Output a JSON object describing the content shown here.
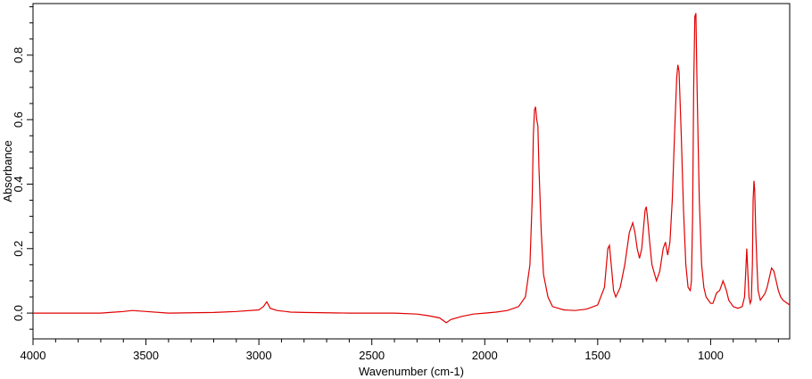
{
  "chart_data": {
    "type": "line",
    "title": "",
    "xlabel": "Wavenumber (cm-1)",
    "ylabel": "Absorbance",
    "xlim": [
      4000,
      650
    ],
    "ylim": [
      -0.08,
      0.96
    ],
    "x_ticks": [
      "4000",
      "3500",
      "3000",
      "2500",
      "2000",
      "1500",
      "1000"
    ],
    "y_ticks": [
      "0.0",
      "0.2",
      "0.4",
      "0.6",
      "0.8"
    ],
    "grid": false,
    "legend": "none",
    "series": [
      {
        "color": "#e00000",
        "x": [
          4000,
          3700,
          3600,
          3560,
          3500,
          3400,
          3200,
          3100,
          3000,
          2980,
          2965,
          2950,
          2920,
          2880,
          2860,
          2800,
          2600,
          2400,
          2300,
          2250,
          2200,
          2170,
          2150,
          2100,
          2050,
          2000,
          1950,
          1900,
          1850,
          1820,
          1800,
          1790,
          1785,
          1780,
          1775,
          1770,
          1765,
          1760,
          1750,
          1740,
          1720,
          1700,
          1650,
          1600,
          1550,
          1500,
          1470,
          1455,
          1448,
          1440,
          1430,
          1420,
          1400,
          1380,
          1360,
          1345,
          1335,
          1325,
          1315,
          1305,
          1295,
          1290,
          1285,
          1280,
          1270,
          1260,
          1240,
          1225,
          1210,
          1200,
          1195,
          1190,
          1180,
          1170,
          1160,
          1150,
          1145,
          1140,
          1130,
          1120,
          1110,
          1100,
          1090,
          1085,
          1080,
          1075,
          1070,
          1065,
          1060,
          1050,
          1040,
          1030,
          1020,
          1000,
          990,
          980,
          975,
          970,
          960,
          950,
          945,
          940,
          930,
          920,
          910,
          900,
          880,
          860,
          850,
          845,
          840,
          835,
          830,
          825,
          820,
          815,
          812,
          808,
          805,
          800,
          795,
          790,
          780,
          770,
          760,
          750,
          740,
          730,
          720,
          710,
          700,
          690,
          680,
          670,
          660,
          650
        ],
        "values": [
          0.0,
          0.0,
          0.005,
          0.008,
          0.005,
          0.0,
          0.002,
          0.005,
          0.01,
          0.02,
          0.035,
          0.015,
          0.008,
          0.005,
          0.003,
          0.002,
          0.0,
          0.0,
          -0.003,
          -0.008,
          -0.015,
          -0.03,
          -0.02,
          -0.01,
          -0.003,
          0.0,
          0.003,
          0.008,
          0.02,
          0.05,
          0.15,
          0.35,
          0.55,
          0.63,
          0.64,
          0.6,
          0.58,
          0.45,
          0.25,
          0.12,
          0.05,
          0.02,
          0.01,
          0.008,
          0.012,
          0.025,
          0.08,
          0.2,
          0.21,
          0.15,
          0.07,
          0.05,
          0.08,
          0.15,
          0.25,
          0.28,
          0.25,
          0.2,
          0.17,
          0.2,
          0.28,
          0.32,
          0.33,
          0.3,
          0.22,
          0.15,
          0.1,
          0.13,
          0.2,
          0.22,
          0.2,
          0.18,
          0.22,
          0.35,
          0.55,
          0.73,
          0.77,
          0.75,
          0.55,
          0.32,
          0.15,
          0.08,
          0.07,
          0.1,
          0.3,
          0.7,
          0.92,
          0.93,
          0.7,
          0.35,
          0.15,
          0.08,
          0.05,
          0.03,
          0.03,
          0.05,
          0.06,
          0.065,
          0.07,
          0.09,
          0.1,
          0.09,
          0.07,
          0.04,
          0.03,
          0.02,
          0.015,
          0.02,
          0.05,
          0.12,
          0.2,
          0.12,
          0.05,
          0.03,
          0.04,
          0.15,
          0.35,
          0.41,
          0.38,
          0.25,
          0.15,
          0.07,
          0.04,
          0.05,
          0.06,
          0.08,
          0.11,
          0.14,
          0.13,
          0.1,
          0.07,
          0.05,
          0.04,
          0.035,
          0.03,
          0.025
        ]
      }
    ]
  }
}
